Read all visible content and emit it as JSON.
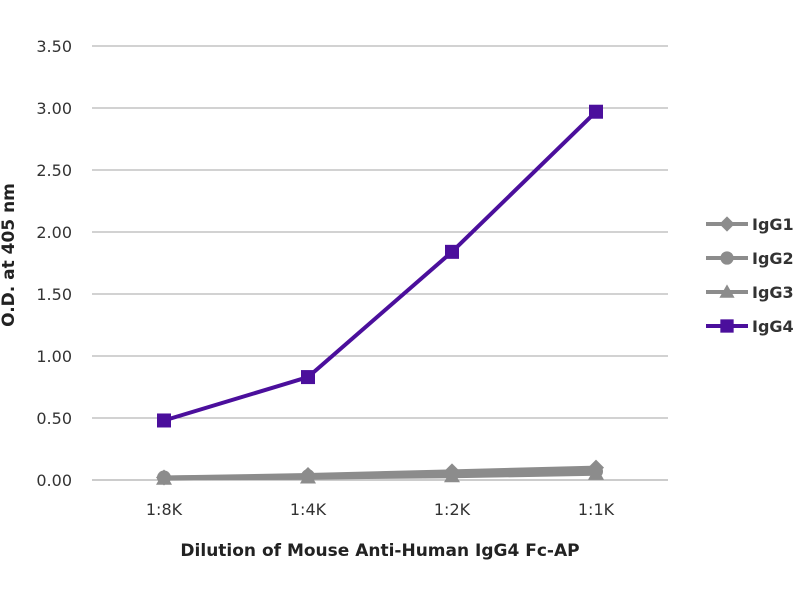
{
  "chart_data": {
    "type": "line",
    "categories": [
      "1:8K",
      "1:4K",
      "1:2K",
      "1:1K"
    ],
    "series": [
      {
        "name": "IgG1",
        "marker": "diamond",
        "color": "#8c8c8c",
        "values": [
          0.02,
          0.04,
          0.07,
          0.1
        ]
      },
      {
        "name": "IgG2",
        "marker": "circle",
        "color": "#8c8c8c",
        "values": [
          0.02,
          0.03,
          0.05,
          0.07
        ]
      },
      {
        "name": "IgG3",
        "marker": "triangle",
        "color": "#8c8c8c",
        "values": [
          0.01,
          0.02,
          0.03,
          0.05
        ]
      },
      {
        "name": "IgG4",
        "marker": "square",
        "color": "#4b0f9c",
        "values": [
          0.48,
          0.83,
          1.84,
          2.97
        ]
      }
    ],
    "xlabel": "Dilution of Mouse Anti-Human IgG4 Fc-AP",
    "ylabel": "O.D. at 405 nm",
    "ylim": [
      0,
      3.5
    ],
    "yticks": [
      "0.00",
      "0.50",
      "1.00",
      "1.50",
      "2.00",
      "2.50",
      "3.00",
      "3.50"
    ],
    "grid": true,
    "legend_position": "right"
  }
}
